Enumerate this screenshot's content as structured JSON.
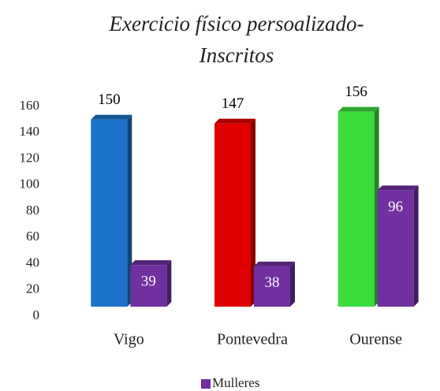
{
  "chart_data": {
    "type": "bar3d",
    "title": [
      "Exercicio físico persoalizado-",
      "Inscritos"
    ],
    "categories": [
      "Vigo",
      "Pontevedra",
      "Ourense"
    ],
    "series": [
      {
        "colors": [
          "#1a73c8",
          "#e00000",
          "#3ddc3d"
        ],
        "values": [
          150,
          147,
          156
        ],
        "label_color": "#000000"
      },
      {
        "name": "Mulleres",
        "color": "#7030a0",
        "values": [
          39,
          38,
          96
        ],
        "label_color": "#ffffff"
      }
    ],
    "ylim": [
      0,
      160
    ],
    "yticks": [
      0,
      20,
      40,
      60,
      80,
      100,
      120,
      140,
      160
    ],
    "grid": false,
    "legend": "bottom"
  }
}
